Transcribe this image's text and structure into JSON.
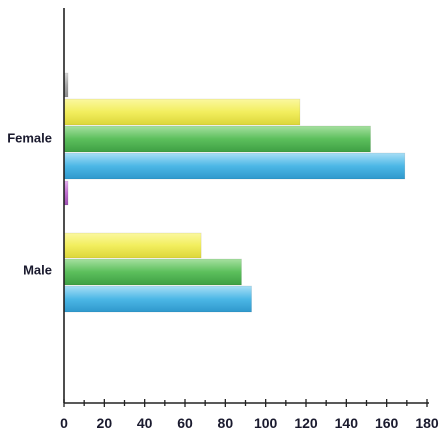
{
  "chart_data": {
    "type": "bar",
    "orientation": "horizontal",
    "categories": [
      "Female",
      "Male"
    ],
    "series": [
      {
        "values": [
          2,
          0
        ],
        "color": "#a0a0a0"
      },
      {
        "values": [
          117,
          68
        ],
        "color": "#f2ee5e"
      },
      {
        "values": [
          152,
          88
        ],
        "color": "#5cbf5c"
      },
      {
        "values": [
          169,
          93
        ],
        "color": "#4cb7e6"
      },
      {
        "values": [
          2,
          0
        ],
        "color": "#c070d0"
      }
    ],
    "xlim": [
      0,
      180
    ],
    "xticks": [
      "0",
      "20",
      "40",
      "60",
      "80",
      "100",
      "120",
      "140",
      "160",
      "180"
    ],
    "grid": false,
    "legend": "none"
  }
}
